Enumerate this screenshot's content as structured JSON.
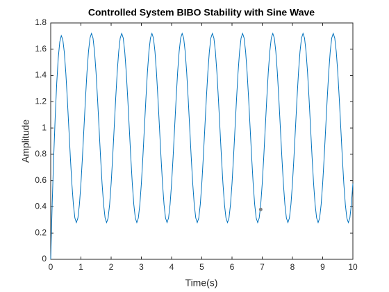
{
  "chart_data": {
    "type": "line",
    "title": "Controlled System BIBO Stability with Sine Wave",
    "xlabel": "Time(s)",
    "ylabel": "Amplitude",
    "xlim": [
      0,
      10
    ],
    "ylim": [
      0,
      1.8
    ],
    "xticks": [
      0,
      1,
      2,
      3,
      4,
      5,
      6,
      7,
      8,
      9,
      10
    ],
    "yticks": [
      0,
      0.2,
      0.4,
      0.6,
      0.8,
      1,
      1.2,
      1.4,
      1.6,
      1.8
    ],
    "grid": false,
    "x": [
      0,
      0.05,
      0.1,
      0.15,
      0.2,
      0.25,
      0.3,
      0.35,
      0.4,
      0.45,
      0.5,
      0.55,
      0.6,
      0.65,
      0.7,
      0.75,
      0.8,
      0.85,
      0.9,
      0.95,
      1,
      1.05,
      1.1,
      1.15,
      1.2,
      1.25,
      1.3,
      1.35,
      1.4,
      1.45,
      1.5,
      1.55,
      1.6,
      1.65,
      1.7,
      1.75,
      1.8,
      1.85,
      1.9,
      1.95,
      2,
      2.05,
      2.1,
      2.15,
      2.2,
      2.25,
      2.3,
      2.35,
      2.4,
      2.45,
      2.5,
      2.55,
      2.6,
      2.65,
      2.7,
      2.75,
      2.8,
      2.85,
      2.9,
      2.95,
      3,
      3.05,
      3.1,
      3.15,
      3.2,
      3.25,
      3.3,
      3.35,
      3.4,
      3.45,
      3.5,
      3.55,
      3.6,
      3.65,
      3.7,
      3.75,
      3.8,
      3.85,
      3.9,
      3.95,
      4,
      4.05,
      4.1,
      4.15,
      4.2,
      4.25,
      4.3,
      4.35,
      4.4,
      4.45,
      4.5,
      4.55,
      4.6,
      4.65,
      4.7,
      4.75,
      4.8,
      4.85,
      4.9,
      4.95,
      5,
      5.05,
      5.1,
      5.15,
      5.2,
      5.25,
      5.3,
      5.35,
      5.4,
      5.45,
      5.5,
      5.55,
      5.6,
      5.65,
      5.7,
      5.75,
      5.8,
      5.85,
      5.9,
      5.95,
      6,
      6.05,
      6.1,
      6.15,
      6.2,
      6.25,
      6.3,
      6.35,
      6.4,
      6.45,
      6.5,
      6.55,
      6.6,
      6.65,
      6.7,
      6.75,
      6.8,
      6.85,
      6.9,
      6.95,
      7,
      7.05,
      7.1,
      7.15,
      7.2,
      7.25,
      7.3,
      7.35,
      7.4,
      7.45,
      7.5,
      7.55,
      7.6,
      7.65,
      7.7,
      7.75,
      7.8,
      7.85,
      7.9,
      7.95,
      8,
      8.05,
      8.1,
      8.15,
      8.2,
      8.25,
      8.3,
      8.35,
      8.4,
      8.45,
      8.5,
      8.55,
      8.6,
      8.65,
      8.7,
      8.75,
      8.8,
      8.85,
      8.9,
      8.95,
      9,
      9.05,
      9.1,
      9.15,
      9.2,
      9.25,
      9.3,
      9.35,
      9.4,
      9.45,
      9.5,
      9.55,
      9.6,
      9.65,
      9.7,
      9.75,
      9.8,
      9.85,
      9.9,
      9.95,
      10
    ],
    "series": [
      {
        "color": "#0072bd",
        "values": [
          0,
          0.428,
          0.788,
          1.093,
          1.345,
          1.535,
          1.656,
          1.703,
          1.674,
          1.576,
          1.419,
          1.22,
          1,
          0.778,
          0.577,
          0.418,
          0.315,
          0.28,
          0.315,
          0.418,
          0.577,
          0.778,
          1,
          1.222,
          1.423,
          1.582,
          1.685,
          1.72,
          1.685,
          1.582,
          1.423,
          1.222,
          1,
          0.778,
          0.577,
          0.418,
          0.315,
          0.28,
          0.315,
          0.418,
          0.577,
          0.778,
          1,
          1.222,
          1.423,
          1.582,
          1.685,
          1.72,
          1.685,
          1.582,
          1.423,
          1.222,
          1,
          0.778,
          0.577,
          0.418,
          0.315,
          0.28,
          0.315,
          0.418,
          0.577,
          0.778,
          1,
          1.222,
          1.423,
          1.582,
          1.685,
          1.72,
          1.685,
          1.582,
          1.423,
          1.222,
          1,
          0.778,
          0.577,
          0.418,
          0.315,
          0.28,
          0.315,
          0.418,
          0.577,
          0.778,
          1,
          1.222,
          1.423,
          1.582,
          1.685,
          1.72,
          1.685,
          1.582,
          1.423,
          1.222,
          1,
          0.778,
          0.577,
          0.418,
          0.315,
          0.28,
          0.315,
          0.418,
          0.577,
          0.778,
          1,
          1.222,
          1.423,
          1.582,
          1.685,
          1.72,
          1.685,
          1.582,
          1.423,
          1.222,
          1,
          0.778,
          0.577,
          0.418,
          0.315,
          0.28,
          0.315,
          0.418,
          0.577,
          0.778,
          1,
          1.222,
          1.423,
          1.582,
          1.685,
          1.72,
          1.685,
          1.582,
          1.423,
          1.222,
          1,
          0.778,
          0.577,
          0.418,
          0.315,
          0.28,
          0.315,
          0.418,
          0.577,
          0.778,
          1,
          1.222,
          1.423,
          1.582,
          1.685,
          1.72,
          1.685,
          1.582,
          1.423,
          1.222,
          1,
          0.778,
          0.577,
          0.418,
          0.315,
          0.28,
          0.315,
          0.418,
          0.577,
          0.778,
          1,
          1.222,
          1.423,
          1.582,
          1.685,
          1.72,
          1.685,
          1.582,
          1.423,
          1.222,
          1,
          0.778,
          0.577,
          0.418,
          0.315,
          0.28,
          0.315,
          0.418,
          0.577,
          0.778,
          1,
          1.222,
          1.423,
          1.582,
          1.685,
          1.72,
          1.685,
          1.582,
          1.423,
          1.222,
          1,
          0.778,
          0.577,
          0.418,
          0.315,
          0.28,
          0.315,
          0.418,
          0.577
        ]
      }
    ],
    "marker": {
      "x": 6.95,
      "y": 0.38,
      "color": "#808080"
    }
  }
}
